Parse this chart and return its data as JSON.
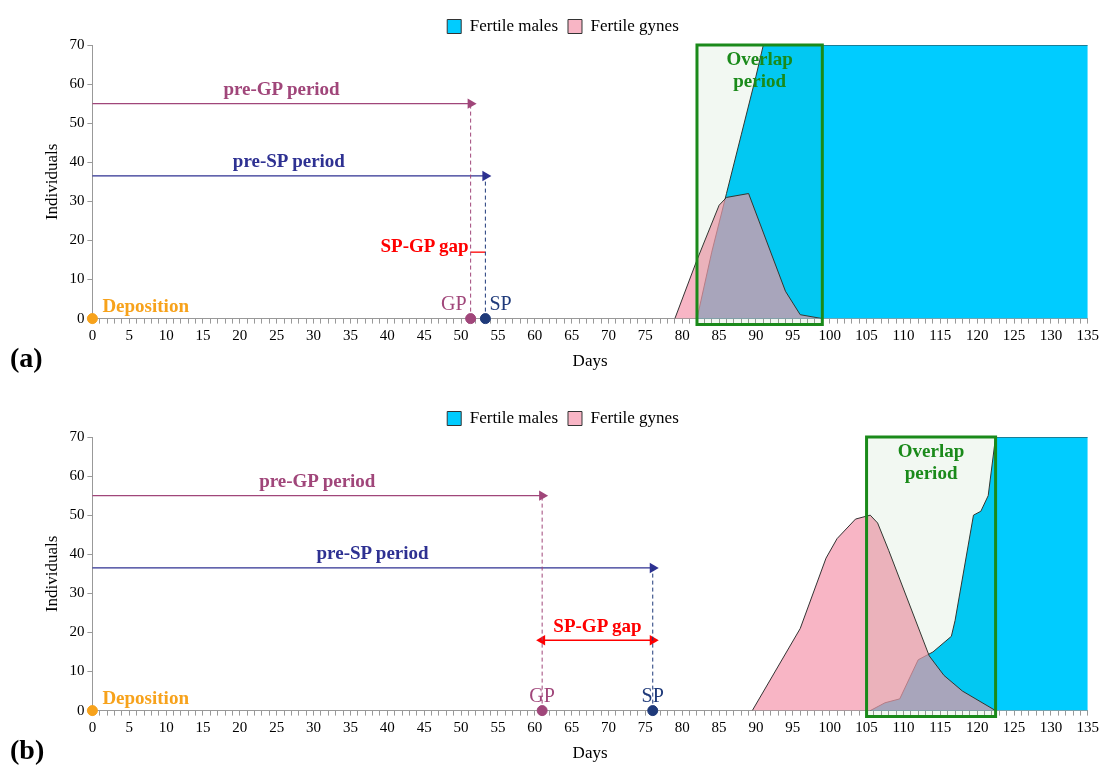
{
  "chart_data": [
    {
      "type": "area",
      "xlabel": "Days",
      "ylabel": "Individuals",
      "legend": "top",
      "series": [
        {
          "name": "Fertile males",
          "color": "#00ccff",
          "x": [
            82,
            84,
            86,
            88,
            90,
            91,
            135
          ],
          "values": [
            0,
            17,
            32,
            47,
            62,
            70,
            70
          ]
        },
        {
          "name": "Fertile gynes",
          "color": "#f598ae",
          "x": [
            79,
            82,
            85,
            86,
            89,
            94,
            96,
            99
          ],
          "values": [
            0,
            15,
            29,
            31,
            32,
            7,
            1,
            0
          ]
        },
        {
          "type": "scatter",
          "marker": "circle",
          "x": [
            0,
            51.3,
            53.3
          ],
          "values": [
            0,
            0,
            0
          ],
          "colors": [
            "#f7a21b",
            "#a0467a",
            "#1f3a7a"
          ]
        },
        {
          "type": "line",
          "marker": "triangle",
          "color": "#a0467a",
          "x": [
            0,
            51.3
          ],
          "values": [
            55,
            55
          ]
        },
        {
          "type": "line",
          "marker": "triangle",
          "color": "#2e3192",
          "x": [
            0,
            53.3
          ],
          "values": [
            36.5,
            36.5
          ]
        },
        {
          "type": "line",
          "marker": "none",
          "color": "#ff0000",
          "x": [
            51.3,
            53.3
          ],
          "values": [
            17,
            17
          ]
        }
      ],
      "ref_lines": [
        {
          "axis": "x",
          "value": 51.3,
          "label": "GP",
          "color": "#a0467a",
          "line_style": "dashed"
        },
        {
          "axis": "x",
          "value": 53.3,
          "label": "SP",
          "color": "#1f3a7a",
          "line_style": "dashed"
        }
      ],
      "bands": [
        {
          "axis": "x",
          "from": 82,
          "to": 99,
          "label": "Overlap period",
          "color": "#1a8a1a"
        }
      ],
      "annotations": [
        {
          "text": "pre-GP period",
          "x": 25.65,
          "y": 55
        },
        {
          "text": "pre-SP period",
          "x": 26.65,
          "y": 36.5
        },
        {
          "text": "SP-GP gap",
          "x": 52.3,
          "y": 17
        },
        {
          "text": "Deposition",
          "x": 0,
          "y": 0
        },
        "(a)"
      ],
      "xlim": [
        0,
        135
      ],
      "ylim": [
        0,
        70
      ],
      "yticks": [
        0,
        10,
        20,
        30,
        40,
        50,
        60,
        70
      ],
      "xticks": [
        0,
        {
          "value": 1,
          "label": null
        },
        {
          "value": 2,
          "label": null
        },
        {
          "value": 3,
          "label": null
        },
        {
          "value": 4,
          "label": null
        },
        5,
        {
          "value": 6,
          "label": null
        },
        {
          "value": 7,
          "label": null
        },
        {
          "value": 8,
          "label": null
        },
        {
          "value": 9,
          "label": null
        },
        10,
        {
          "value": 11,
          "label": null
        },
        {
          "value": 12,
          "label": null
        },
        {
          "value": 13,
          "label": null
        },
        {
          "value": 14,
          "label": null
        },
        15,
        {
          "value": 16,
          "label": null
        },
        {
          "value": 17,
          "label": null
        },
        {
          "value": 18,
          "label": null
        },
        {
          "value": 19,
          "label": null
        },
        20,
        {
          "value": 21,
          "label": null
        },
        {
          "value": 22,
          "label": null
        },
        {
          "value": 23,
          "label": null
        },
        {
          "value": 24,
          "label": null
        },
        25,
        {
          "value": 26,
          "label": null
        },
        {
          "value": 27,
          "label": null
        },
        {
          "value": 28,
          "label": null
        },
        {
          "value": 29,
          "label": null
        },
        30,
        {
          "value": 31,
          "label": null
        },
        {
          "value": 32,
          "label": null
        },
        {
          "value": 33,
          "label": null
        },
        {
          "value": 34,
          "label": null
        },
        35,
        {
          "value": 36,
          "label": null
        },
        {
          "value": 37,
          "label": null
        },
        {
          "value": 38,
          "label": null
        },
        {
          "value": 39,
          "label": null
        },
        40,
        {
          "value": 41,
          "label": null
        },
        {
          "value": 42,
          "label": null
        },
        {
          "value": 43,
          "label": null
        },
        {
          "value": 44,
          "label": null
        },
        45,
        {
          "value": 46,
          "label": null
        },
        {
          "value": 47,
          "label": null
        },
        {
          "value": 48,
          "label": null
        },
        {
          "value": 49,
          "label": null
        },
        50,
        {
          "value": 51,
          "label": null
        },
        {
          "value": 52,
          "label": null
        },
        {
          "value": 53,
          "label": null
        },
        {
          "value": 54,
          "label": null
        },
        55,
        {
          "value": 56,
          "label": null
        },
        {
          "value": 57,
          "label": null
        },
        {
          "value": 58,
          "label": null
        },
        {
          "value": 59,
          "label": null
        },
        60,
        {
          "value": 61,
          "label": null
        },
        {
          "value": 62,
          "label": null
        },
        {
          "value": 63,
          "label": null
        },
        {
          "value": 64,
          "label": null
        },
        65,
        {
          "value": 66,
          "label": null
        },
        {
          "value": 67,
          "label": null
        },
        {
          "value": 68,
          "label": null
        },
        {
          "value": 69,
          "label": null
        },
        70,
        {
          "value": 71,
          "label": null
        },
        {
          "value": 72,
          "label": null
        },
        {
          "value": 73,
          "label": null
        },
        {
          "value": 74,
          "label": null
        },
        75,
        {
          "value": 76,
          "label": null
        },
        {
          "value": 77,
          "label": null
        },
        {
          "value": 78,
          "label": null
        },
        {
          "value": 79,
          "label": null
        },
        80,
        {
          "value": 81,
          "label": null
        },
        {
          "value": 82,
          "label": null
        },
        {
          "value": 83,
          "label": null
        },
        {
          "value": 84,
          "label": null
        },
        85,
        {
          "value": 86,
          "label": null
        },
        {
          "value": 87,
          "label": null
        },
        {
          "value": 88,
          "label": null
        },
        {
          "value": 89,
          "label": null
        },
        90,
        {
          "value": 91,
          "label": null
        },
        {
          "value": 92,
          "label": null
        },
        {
          "value": 93,
          "label": null
        },
        {
          "value": 94,
          "label": null
        },
        95,
        {
          "value": 96,
          "label": null
        },
        {
          "value": 97,
          "label": null
        },
        {
          "value": 98,
          "label": null
        },
        {
          "value": 99,
          "label": null
        },
        100,
        {
          "value": 101,
          "label": null
        },
        {
          "value": 102,
          "label": null
        },
        {
          "value": 103,
          "label": null
        },
        {
          "value": 104,
          "label": null
        },
        105,
        {
          "value": 106,
          "label": null
        },
        {
          "value": 107,
          "label": null
        },
        {
          "value": 108,
          "label": null
        },
        {
          "value": 109,
          "label": null
        },
        110,
        {
          "value": 111,
          "label": null
        },
        {
          "value": 112,
          "label": null
        },
        {
          "value": 113,
          "label": null
        },
        {
          "value": 114,
          "label": null
        },
        115,
        {
          "value": 116,
          "label": null
        },
        {
          "value": 117,
          "label": null
        },
        {
          "value": 118,
          "label": null
        },
        {
          "value": 119,
          "label": null
        },
        120,
        {
          "value": 121,
          "label": null
        },
        {
          "value": 122,
          "label": null
        },
        {
          "value": 123,
          "label": null
        },
        {
          "value": 124,
          "label": null
        },
        125,
        {
          "value": 126,
          "label": null
        },
        {
          "value": 127,
          "label": null
        },
        {
          "value": 128,
          "label": null
        },
        {
          "value": 129,
          "label": null
        },
        130,
        {
          "value": 131,
          "label": null
        },
        {
          "value": 132,
          "label": null
        },
        {
          "value": 133,
          "label": null
        },
        {
          "value": 134,
          "label": null
        },
        135
      ]
    },
    {
      "type": "area",
      "xlabel": "Days",
      "ylabel": "Individuals",
      "legend": "top",
      "series": [
        {
          "name": "Fertile males",
          "color": "#00ccff",
          "x": [
            105.5,
            107.5,
            109.5,
            112,
            114,
            116.5,
            117,
            119.5,
            120.5,
            121.5,
            122.5,
            135
          ],
          "values": [
            0,
            2,
            3,
            13,
            15,
            19,
            23,
            50,
            51,
            55,
            70,
            70
          ]
        },
        {
          "name": "Fertile gynes",
          "color": "#f598ae",
          "x": [
            89.5,
            96,
            99.5,
            101,
            103.5,
            105.5,
            106.5,
            108,
            113.5,
            115.5,
            118,
            122.5
          ],
          "values": [
            0,
            21,
            39,
            44,
            49,
            50,
            48,
            41,
            14,
            9,
            5,
            0
          ]
        },
        {
          "type": "scatter",
          "marker": "circle",
          "x": [
            0,
            61,
            76
          ],
          "values": [
            0,
            0,
            0
          ],
          "colors": [
            "#f7a21b",
            "#a0467a",
            "#1f3a7a"
          ]
        },
        {
          "type": "line",
          "marker": "triangle",
          "color": "#a0467a",
          "x": [
            0,
            61
          ],
          "values": [
            55,
            55
          ]
        },
        {
          "type": "line",
          "marker": "triangle",
          "color": "#2e3192",
          "x": [
            0,
            76
          ],
          "values": [
            36.5,
            36.5
          ]
        },
        {
          "type": "line",
          "marker": "triangle",
          "color": "#ff0000",
          "x": [
            61,
            76
          ],
          "values": [
            18,
            18
          ]
        }
      ],
      "ref_lines": [
        {
          "axis": "x",
          "value": 61,
          "label": "GP",
          "color": "#a0467a",
          "line_style": "dashed"
        },
        {
          "axis": "x",
          "value": 76,
          "label": "SP",
          "color": "#1f3a7a",
          "line_style": "dashed"
        }
      ],
      "bands": [
        {
          "axis": "x",
          "from": 105,
          "to": 122.5,
          "label": "Overlap period",
          "color": "#1a8a1a"
        }
      ],
      "annotations": [
        {
          "text": "pre-GP period",
          "x": 30.5,
          "y": 55
        },
        {
          "text": "pre-SP period",
          "x": 38,
          "y": 36.5
        },
        {
          "text": "SP-GP gap",
          "x": 68.5,
          "y": 18
        },
        {
          "text": "Deposition",
          "x": 0,
          "y": 0
        },
        "(b)"
      ],
      "xlim": [
        0,
        135
      ],
      "ylim": [
        0,
        70
      ],
      "yticks": [
        0,
        10,
        20,
        30,
        40,
        50,
        60,
        70
      ],
      "xticks": [
        0,
        {
          "value": 1,
          "label": null
        },
        {
          "value": 2,
          "label": null
        },
        {
          "value": 3,
          "label": null
        },
        {
          "value": 4,
          "label": null
        },
        5,
        {
          "value": 6,
          "label": null
        },
        {
          "value": 7,
          "label": null
        },
        {
          "value": 8,
          "label": null
        },
        {
          "value": 9,
          "label": null
        },
        10,
        {
          "value": 11,
          "label": null
        },
        {
          "value": 12,
          "label": null
        },
        {
          "value": 13,
          "label": null
        },
        {
          "value": 14,
          "label": null
        },
        15,
        {
          "value": 16,
          "label": null
        },
        {
          "value": 17,
          "label": null
        },
        {
          "value": 18,
          "label": null
        },
        {
          "value": 19,
          "label": null
        },
        20,
        {
          "value": 21,
          "label": null
        },
        {
          "value": 22,
          "label": null
        },
        {
          "value": 23,
          "label": null
        },
        {
          "value": 24,
          "label": null
        },
        25,
        {
          "value": 26,
          "label": null
        },
        {
          "value": 27,
          "label": null
        },
        {
          "value": 28,
          "label": null
        },
        {
          "value": 29,
          "label": null
        },
        30,
        {
          "value": 31,
          "label": null
        },
        {
          "value": 32,
          "label": null
        },
        {
          "value": 33,
          "label": null
        },
        {
          "value": 34,
          "label": null
        },
        35,
        {
          "value": 36,
          "label": null
        },
        {
          "value": 37,
          "label": null
        },
        {
          "value": 38,
          "label": null
        },
        {
          "value": 39,
          "label": null
        },
        40,
        {
          "value": 41,
          "label": null
        },
        {
          "value": 42,
          "label": null
        },
        {
          "value": 43,
          "label": null
        },
        {
          "value": 44,
          "label": null
        },
        45,
        {
          "value": 46,
          "label": null
        },
        {
          "value": 47,
          "label": null
        },
        {
          "value": 48,
          "label": null
        },
        {
          "value": 49,
          "label": null
        },
        50,
        {
          "value": 51,
          "label": null
        },
        {
          "value": 52,
          "label": null
        },
        {
          "value": 53,
          "label": null
        },
        {
          "value": 54,
          "label": null
        },
        55,
        {
          "value": 56,
          "label": null
        },
        {
          "value": 57,
          "label": null
        },
        {
          "value": 58,
          "label": null
        },
        {
          "value": 59,
          "label": null
        },
        60,
        {
          "value": 61,
          "label": null
        },
        {
          "value": 62,
          "label": null
        },
        {
          "value": 63,
          "label": null
        },
        {
          "value": 64,
          "label": null
        },
        65,
        {
          "value": 66,
          "label": null
        },
        {
          "value": 67,
          "label": null
        },
        {
          "value": 68,
          "label": null
        },
        {
          "value": 69,
          "label": null
        },
        70,
        {
          "value": 71,
          "label": null
        },
        {
          "value": 72,
          "label": null
        },
        {
          "value": 73,
          "label": null
        },
        {
          "value": 74,
          "label": null
        },
        75,
        {
          "value": 76,
          "label": null
        },
        {
          "value": 77,
          "label": null
        },
        {
          "value": 78,
          "label": null
        },
        {
          "value": 79,
          "label": null
        },
        80,
        {
          "value": 81,
          "label": null
        },
        {
          "value": 82,
          "label": null
        },
        {
          "value": 83,
          "label": null
        },
        {
          "value": 84,
          "label": null
        },
        85,
        {
          "value": 86,
          "label": null
        },
        {
          "value": 87,
          "label": null
        },
        {
          "value": 88,
          "label": null
        },
        {
          "value": 89,
          "label": null
        },
        90,
        {
          "value": 91,
          "label": null
        },
        {
          "value": 92,
          "label": null
        },
        {
          "value": 93,
          "label": null
        },
        {
          "value": 94,
          "label": null
        },
        95,
        {
          "value": 96,
          "label": null
        },
        {
          "value": 97,
          "label": null
        },
        {
          "value": 98,
          "label": null
        },
        {
          "value": 99,
          "label": null
        },
        100,
        {
          "value": 101,
          "label": null
        },
        {
          "value": 102,
          "label": null
        },
        {
          "value": 103,
          "label": null
        },
        {
          "value": 104,
          "label": null
        },
        105,
        {
          "value": 106,
          "label": null
        },
        {
          "value": 107,
          "label": null
        },
        {
          "value": 108,
          "label": null
        },
        {
          "value": 109,
          "label": null
        },
        110,
        {
          "value": 111,
          "label": null
        },
        {
          "value": 112,
          "label": null
        },
        {
          "value": 113,
          "label": null
        },
        {
          "value": 114,
          "label": null
        },
        115,
        {
          "value": 116,
          "label": null
        },
        {
          "value": 117,
          "label": null
        },
        {
          "value": 118,
          "label": null
        },
        {
          "value": 119,
          "label": null
        },
        120,
        {
          "value": 121,
          "label": null
        },
        {
          "value": 122,
          "label": null
        },
        {
          "value": 123,
          "label": null
        },
        {
          "value": 124,
          "label": null
        },
        125,
        {
          "value": 126,
          "label": null
        },
        {
          "value": 127,
          "label": null
        },
        {
          "value": 128,
          "label": null
        },
        {
          "value": 129,
          "label": null
        },
        130,
        {
          "value": 131,
          "label": null
        },
        {
          "value": 132,
          "label": null
        },
        {
          "value": 133,
          "label": null
        },
        {
          "value": 134,
          "label": null
        },
        135
      ]
    }
  ]
}
